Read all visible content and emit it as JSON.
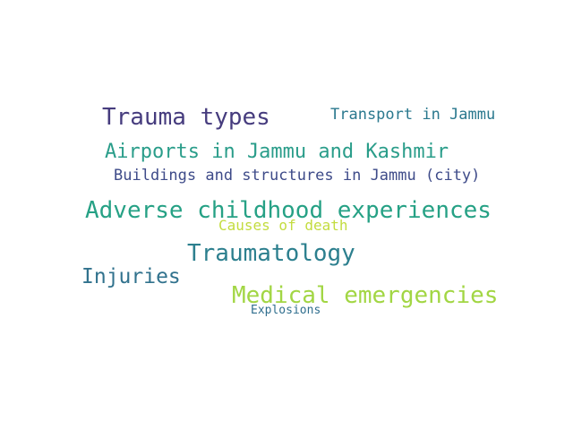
{
  "word_cloud": {
    "words": [
      {
        "text": "Trauma types",
        "color": "#463c7e"
      },
      {
        "text": "Transport in Jammu",
        "color": "#2a788e"
      },
      {
        "text": "Airports in Jammu and Kashmir",
        "color": "#2a9d8a"
      },
      {
        "text": "Buildings and structures in Jammu (city)",
        "color": "#3e4b89"
      },
      {
        "text": "Adverse childhood experiences",
        "color": "#26a185"
      },
      {
        "text": "Causes of death",
        "color": "#c3dc3f"
      },
      {
        "text": "Traumatology",
        "color": "#2c7f8e"
      },
      {
        "text": "Injuries",
        "color": "#31728d"
      },
      {
        "text": "Medical emergencies",
        "color": "#a2d644"
      },
      {
        "text": "Explosions",
        "color": "#2f6e8e"
      }
    ]
  }
}
